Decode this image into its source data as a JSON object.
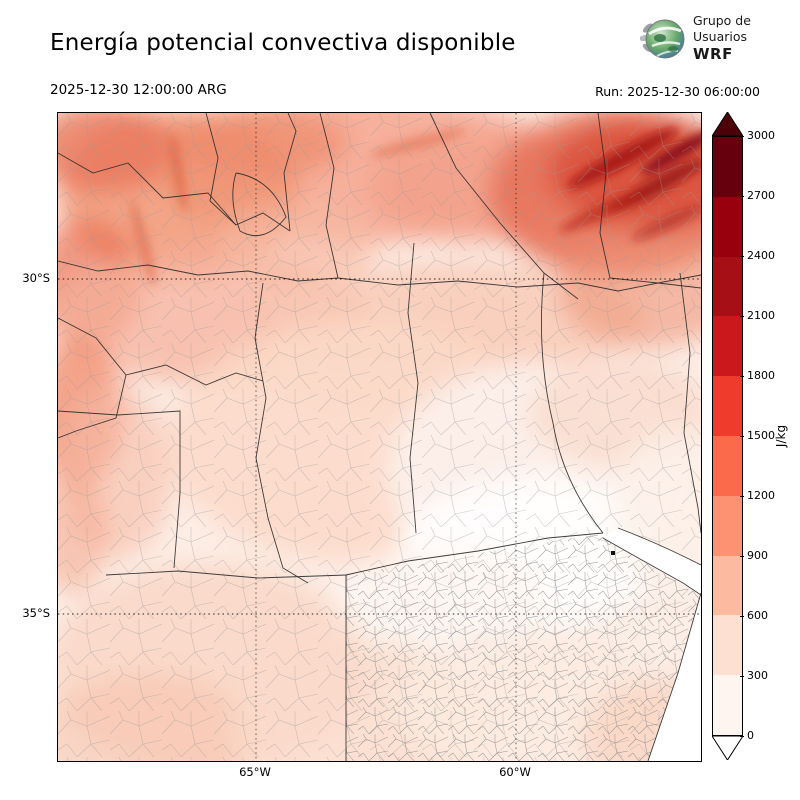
{
  "header": {
    "title": "Energía potencial convectiva disponible",
    "logo": {
      "line1": "Grupo de",
      "line2": "Usuarios",
      "line3": "WRF"
    },
    "valid_time": "2025-12-30 12:00:00 ARG",
    "run_label": "Run: 2025-12-30 06:00:00"
  },
  "map": {
    "lat_ticks": [
      "30°S",
      "35°S"
    ],
    "lon_ticks": [
      "65°W",
      "60°W"
    ]
  },
  "colorbar": {
    "unit": "J/kg",
    "ticks": [
      "0",
      "300",
      "600",
      "900",
      "1200",
      "1500",
      "1800",
      "2100",
      "2400",
      "2700",
      "3000"
    ],
    "colors": [
      "#fff5f0",
      "#fee0d2",
      "#fcbba1",
      "#fc9272",
      "#fb6a4a",
      "#ef3b2c",
      "#cb181d",
      "#a50f15",
      "#99000d",
      "#67000d"
    ],
    "arrow_top_color": "#4c0009",
    "arrow_bottom_color": "#ffffff"
  },
  "chart_data": {
    "type": "heatmap",
    "title": "Energía potencial convectiva disponible",
    "valid_time": "2025-12-30 12:00:00 ARG",
    "run": "2025-12-30 06:00:00",
    "unit": "J/kg",
    "levels": [
      0,
      300,
      600,
      900,
      1200,
      1500,
      1800,
      2100,
      2400,
      2700,
      3000
    ],
    "colormap": "Reds",
    "x_ticks": [
      "65°W",
      "60°W"
    ],
    "y_ticks": [
      "30°S",
      "35°S"
    ],
    "legend_position": "right",
    "regions_read_from_shading": [
      {
        "area": "northeast corner",
        "cape_jkg": "1500-3000"
      },
      {
        "area": "northern band",
        "cape_jkg": "600-1200"
      },
      {
        "area": "northwest / Andes foothills",
        "cape_jkg": "600-1200"
      },
      {
        "area": "west edge mid-latitudes",
        "cape_jkg": "600-900"
      },
      {
        "area": "central plains",
        "cape_jkg": "150-450"
      },
      {
        "area": "south-center and southeast",
        "cape_jkg": "0-300"
      },
      {
        "area": "southwest",
        "cape_jkg": "150-450"
      }
    ]
  }
}
